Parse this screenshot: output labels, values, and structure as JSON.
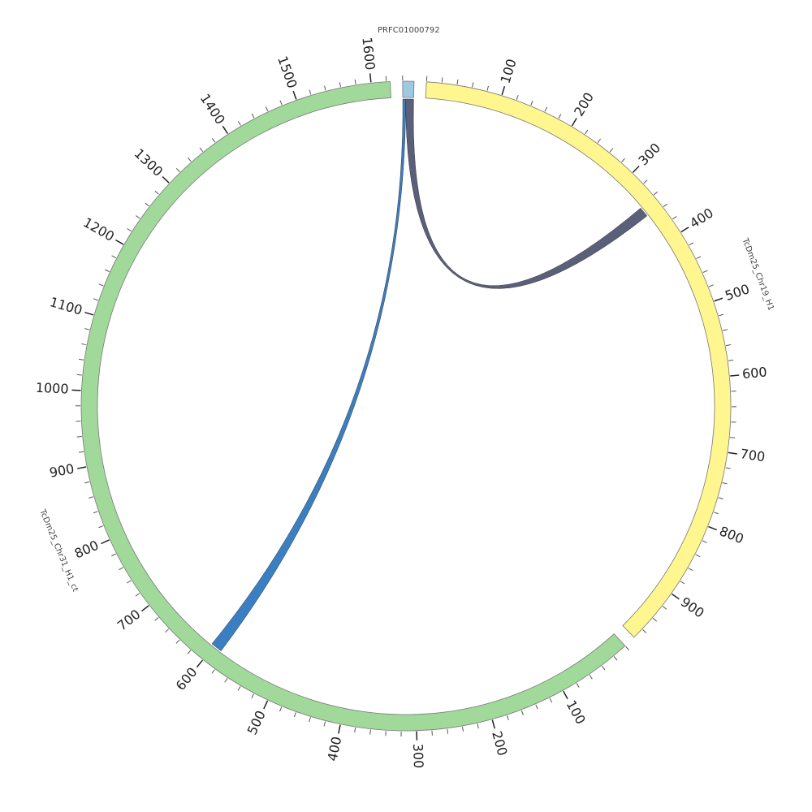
{
  "chart_data": {
    "type": "chord",
    "segments": [
      {
        "name": "PRFC01000792",
        "length": 15,
        "color": "#9ecae1"
      },
      {
        "name": "TcDm25_Chr19_H1",
        "length": 975,
        "color": "#fff68f",
        "ticks": [
          100,
          200,
          300,
          400,
          500,
          600,
          700,
          800,
          900
        ]
      },
      {
        "name": "TcDm25_Chr31_H1_ct",
        "length": 1625,
        "color": "#a1d99b",
        "ticks": [
          100,
          200,
          300,
          400,
          500,
          600,
          700,
          800,
          900,
          1000,
          1100,
          1200,
          1300,
          1400,
          1500,
          1600
        ]
      }
    ],
    "links": [
      {
        "source": {
          "segment": 0,
          "start": 0,
          "end": 4
        },
        "target": {
          "segment": 2,
          "start": 588,
          "end": 604
        },
        "color": "#3a7fc1"
      },
      {
        "source": {
          "segment": 0,
          "start": 4,
          "end": 15
        },
        "target": {
          "segment": 1,
          "start": 342,
          "end": 356
        },
        "color": "#5a5f7a"
      }
    ],
    "minor_tick_interval": 20
  }
}
